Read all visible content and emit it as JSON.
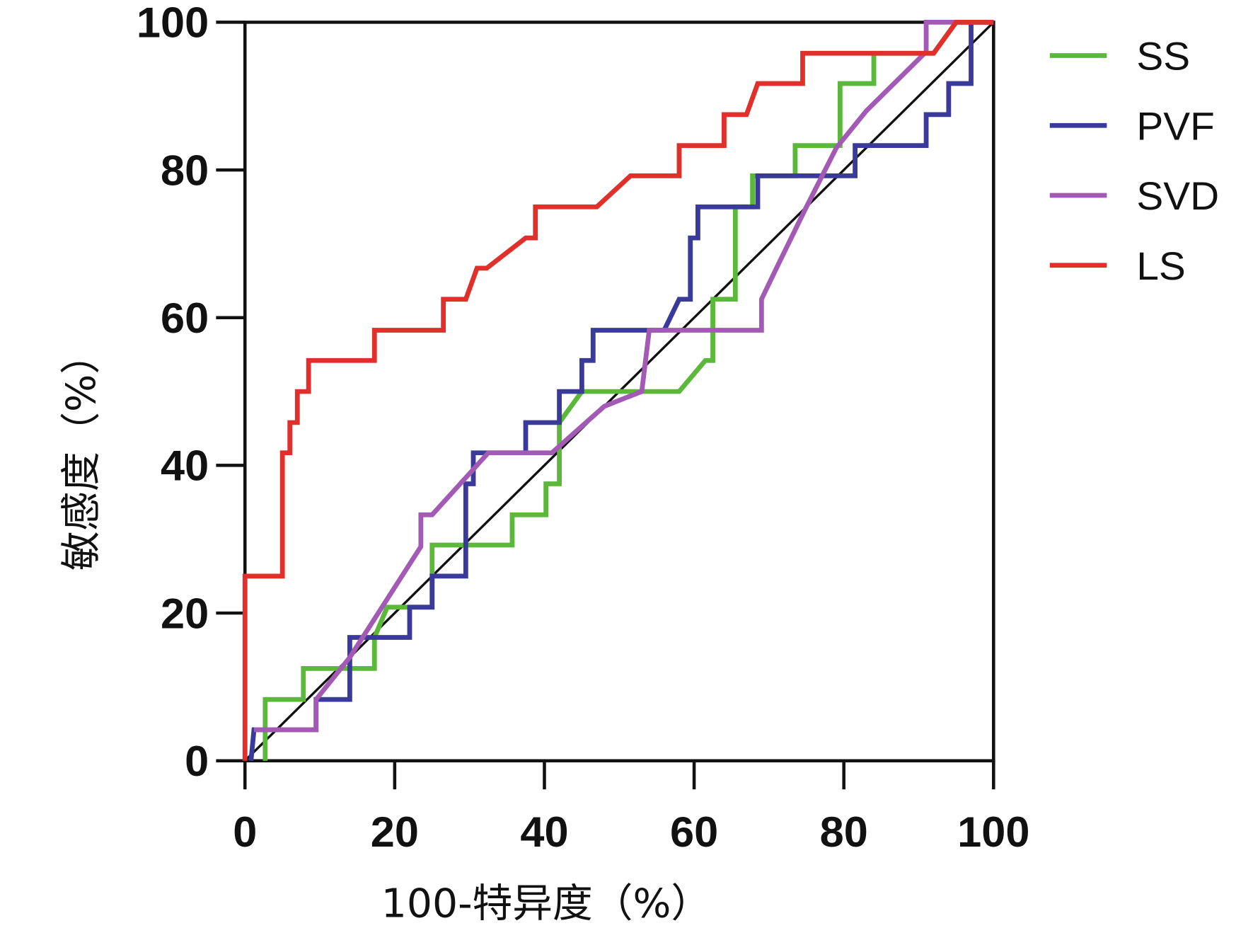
{
  "chart_data": {
    "type": "line",
    "title": "",
    "xlabel": "100-特异度（%）",
    "ylabel": "敏感度（%）",
    "xlim": [
      0,
      100
    ],
    "ylim": [
      0,
      100
    ],
    "xticks": [
      "0",
      "20",
      "40",
      "60",
      "80",
      "100"
    ],
    "yticks": [
      "0",
      "20",
      "40",
      "60",
      "80",
      "100"
    ],
    "grid": false,
    "legend_position": "top-right",
    "reference_line": {
      "name": "diagonal",
      "color": "#111111",
      "points": [
        [
          0,
          0
        ],
        [
          100,
          100
        ]
      ]
    },
    "series": [
      {
        "name": "SS",
        "color": "#5cb83a",
        "points": [
          [
            2.7,
            0
          ],
          [
            2.7,
            8.3
          ],
          [
            7.8,
            8.3
          ],
          [
            7.8,
            12.5
          ],
          [
            17.3,
            12.5
          ],
          [
            17.3,
            16.7
          ],
          [
            19,
            20.8
          ],
          [
            25,
            20.8
          ],
          [
            25,
            29.2
          ],
          [
            35.7,
            29.2
          ],
          [
            35.7,
            33.3
          ],
          [
            40.2,
            33.3
          ],
          [
            40.2,
            37.5
          ],
          [
            42,
            37.5
          ],
          [
            42,
            45.8
          ],
          [
            45,
            50
          ],
          [
            58,
            50
          ],
          [
            61.5,
            54.2
          ],
          [
            62.5,
            54.2
          ],
          [
            62.5,
            62.5
          ],
          [
            65.5,
            62.5
          ],
          [
            65.5,
            75
          ],
          [
            67.8,
            75
          ],
          [
            67.8,
            79.2
          ],
          [
            73.5,
            79.2
          ],
          [
            73.5,
            83.3
          ],
          [
            79.5,
            83.3
          ],
          [
            79.5,
            91.7
          ],
          [
            84,
            91.7
          ],
          [
            84,
            95.8
          ],
          [
            92,
            95.8
          ],
          [
            95,
            100
          ],
          [
            100,
            100
          ]
        ]
      },
      {
        "name": "PVF",
        "color": "#3a3a9a",
        "points": [
          [
            0.8,
            0
          ],
          [
            1.2,
            4.2
          ],
          [
            9.5,
            4.2
          ],
          [
            9.5,
            8.3
          ],
          [
            14,
            8.3
          ],
          [
            14,
            16.7
          ],
          [
            22,
            16.7
          ],
          [
            22,
            20.8
          ],
          [
            25,
            20.8
          ],
          [
            25,
            25
          ],
          [
            29.5,
            25
          ],
          [
            29.5,
            37.5
          ],
          [
            30.5,
            37.5
          ],
          [
            30.5,
            41.7
          ],
          [
            37.5,
            41.7
          ],
          [
            37.5,
            45.8
          ],
          [
            42,
            45.8
          ],
          [
            42,
            50
          ],
          [
            45,
            50
          ],
          [
            45,
            54.2
          ],
          [
            46.5,
            54.2
          ],
          [
            46.5,
            58.3
          ],
          [
            56,
            58.3
          ],
          [
            58,
            62.5
          ],
          [
            59.5,
            62.5
          ],
          [
            59.5,
            70.8
          ],
          [
            60.5,
            70.8
          ],
          [
            60.5,
            75
          ],
          [
            68.5,
            75
          ],
          [
            68.5,
            79.2
          ],
          [
            81.5,
            79.2
          ],
          [
            81.5,
            83.3
          ],
          [
            91,
            83.3
          ],
          [
            91,
            87.5
          ],
          [
            94,
            87.5
          ],
          [
            94,
            91.7
          ],
          [
            97,
            91.7
          ],
          [
            97,
            100
          ],
          [
            100,
            100
          ]
        ]
      },
      {
        "name": "SVD",
        "color": "#a25ab5",
        "points": [
          [
            1.2,
            4.2
          ],
          [
            9.5,
            4.2
          ],
          [
            9.5,
            8.3
          ],
          [
            14,
            14
          ],
          [
            23.5,
            29
          ],
          [
            23.5,
            33.3
          ],
          [
            25,
            33.3
          ],
          [
            32.5,
            41.7
          ],
          [
            41,
            41.7
          ],
          [
            48,
            48
          ],
          [
            53,
            50
          ],
          [
            54,
            58.3
          ],
          [
            69,
            58.3
          ],
          [
            69,
            62.5
          ],
          [
            71,
            66.7
          ],
          [
            75,
            75
          ],
          [
            79,
            83
          ],
          [
            83,
            88
          ],
          [
            91,
            96
          ],
          [
            91,
            100
          ],
          [
            95,
            100
          ],
          [
            100,
            100
          ]
        ]
      },
      {
        "name": "LS",
        "color": "#e0302b",
        "points": [
          [
            0,
            0
          ],
          [
            0,
            25
          ],
          [
            5,
            25
          ],
          [
            5,
            41.7
          ],
          [
            6,
            41.7
          ],
          [
            6,
            45.8
          ],
          [
            7,
            45.8
          ],
          [
            7,
            50
          ],
          [
            8.5,
            50
          ],
          [
            8.5,
            54.2
          ],
          [
            17.3,
            54.2
          ],
          [
            17.3,
            58.3
          ],
          [
            26.5,
            58.3
          ],
          [
            26.5,
            62.5
          ],
          [
            29.5,
            62.5
          ],
          [
            31,
            66.7
          ],
          [
            32.3,
            66.7
          ],
          [
            37.5,
            70.8
          ],
          [
            38.8,
            70.8
          ],
          [
            38.8,
            75
          ],
          [
            47,
            75
          ],
          [
            51.5,
            79.2
          ],
          [
            58,
            79.2
          ],
          [
            58,
            83.3
          ],
          [
            64,
            83.3
          ],
          [
            64,
            87.5
          ],
          [
            67,
            87.5
          ],
          [
            68.5,
            91.7
          ],
          [
            74.5,
            91.7
          ],
          [
            74.5,
            95.8
          ],
          [
            92,
            95.8
          ],
          [
            95,
            100
          ],
          [
            100,
            100
          ]
        ]
      }
    ]
  }
}
